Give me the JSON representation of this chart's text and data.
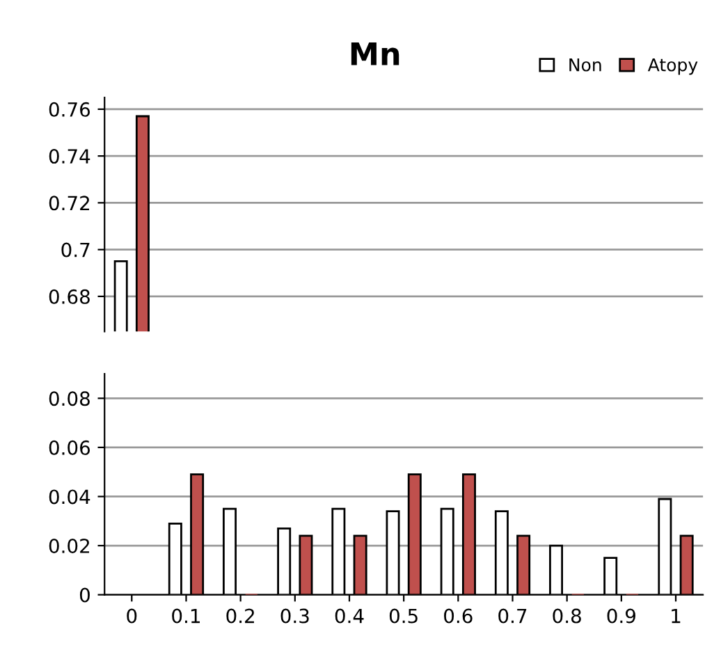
{
  "chart_data": [
    {
      "type": "bar",
      "title": "Mn",
      "legend": "top right",
      "grid": "y",
      "tick_labels": "y",
      "categories": [
        "0",
        "0.1",
        "0.2",
        "0.3",
        "0.4",
        "0.5",
        "0.6",
        "0.7",
        "0.8",
        "0.9",
        "1"
      ],
      "ylim": [
        0.665,
        0.765
      ],
      "yticks": [
        0.68,
        0.7,
        0.72,
        0.74,
        0.76
      ],
      "series": [
        {
          "name": "Non",
          "color": "#ffffff",
          "values": [
            0.695,
            null,
            null,
            null,
            null,
            null,
            null,
            null,
            null,
            null,
            null
          ]
        },
        {
          "name": "Atopy",
          "color": "#c0504d",
          "values": [
            0.757,
            null,
            null,
            null,
            null,
            null,
            null,
            null,
            null,
            null,
            null
          ]
        }
      ]
    },
    {
      "type": "bar",
      "grid": "y",
      "categories": [
        "0",
        "0.1",
        "0.2",
        "0.3",
        "0.4",
        "0.5",
        "0.6",
        "0.7",
        "0.8",
        "0.9",
        "1"
      ],
      "ylim": [
        0,
        0.09
      ],
      "yticks": [
        0,
        0.02,
        0.04,
        0.06,
        0.08
      ],
      "series": [
        {
          "color": "#ffffff",
          "values": [
            null,
            0.029,
            0.035,
            0.027,
            0.035,
            0.034,
            0.035,
            0.034,
            0.02,
            0.015,
            0.039
          ]
        },
        {
          "color": "#c0504d",
          "values": [
            null,
            0.049,
            0,
            0.024,
            0.024,
            0.049,
            0.049,
            0.024,
            0,
            0,
            0.024
          ]
        }
      ]
    }
  ]
}
